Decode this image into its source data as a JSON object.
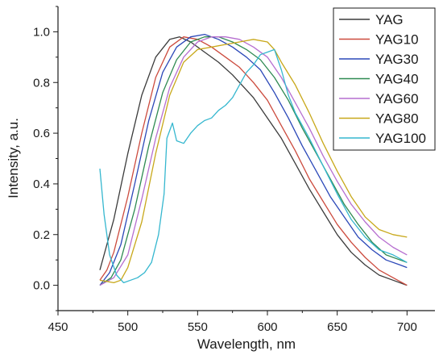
{
  "chart_data": {
    "type": "line",
    "title": "",
    "xlabel": "Wavelength, nm",
    "ylabel": "Intensity, a.u.",
    "xlim": [
      450,
      720
    ],
    "ylim": [
      -0.1,
      1.1
    ],
    "xticks": [
      "450",
      "500",
      "550",
      "600",
      "650",
      "700"
    ],
    "yticks": [
      "0.0",
      "0.2",
      "0.4",
      "0.6",
      "0.8",
      "1.0"
    ],
    "grid": false,
    "legend_position": "top-right",
    "series": [
      {
        "name": "YAG",
        "color": "#3b3b3b",
        "x": [
          480,
          490,
          500,
          510,
          520,
          530,
          537,
          545,
          555,
          565,
          575,
          590,
          600,
          610,
          620,
          630,
          640,
          650,
          660,
          670,
          680,
          690,
          700
        ],
        "y": [
          0.06,
          0.26,
          0.52,
          0.75,
          0.9,
          0.97,
          0.98,
          0.96,
          0.92,
          0.88,
          0.83,
          0.74,
          0.66,
          0.58,
          0.48,
          0.38,
          0.29,
          0.2,
          0.13,
          0.08,
          0.04,
          0.02,
          0.0
        ]
      },
      {
        "name": "YAG10",
        "color": "#cc4b3e",
        "x": [
          480,
          485,
          490,
          500,
          510,
          520,
          530,
          540,
          550,
          560,
          570,
          580,
          590,
          600,
          610,
          620,
          630,
          640,
          650,
          660,
          670,
          680,
          690,
          700
        ],
        "y": [
          0.02,
          0.06,
          0.13,
          0.35,
          0.6,
          0.82,
          0.94,
          0.98,
          0.97,
          0.94,
          0.9,
          0.86,
          0.8,
          0.73,
          0.63,
          0.53,
          0.42,
          0.33,
          0.24,
          0.17,
          0.11,
          0.06,
          0.03,
          0.0
        ]
      },
      {
        "name": "YAG30",
        "color": "#2b48b8",
        "x": [
          480,
          487,
          495,
          505,
          515,
          525,
          535,
          545,
          555,
          565,
          575,
          585,
          595,
          605,
          615,
          625,
          635,
          645,
          655,
          665,
          675,
          685,
          695,
          700
        ],
        "y": [
          0.0,
          0.05,
          0.16,
          0.4,
          0.65,
          0.84,
          0.94,
          0.98,
          0.99,
          0.97,
          0.94,
          0.9,
          0.85,
          0.76,
          0.66,
          0.55,
          0.45,
          0.35,
          0.27,
          0.19,
          0.14,
          0.1,
          0.08,
          0.07
        ]
      },
      {
        "name": "YAG40",
        "color": "#2f8a52",
        "x": [
          480,
          488,
          495,
          505,
          515,
          525,
          535,
          545,
          555,
          565,
          575,
          585,
          595,
          605,
          615,
          625,
          635,
          645,
          655,
          665,
          675,
          685,
          695,
          700
        ],
        "y": [
          0.0,
          0.03,
          0.1,
          0.3,
          0.55,
          0.76,
          0.89,
          0.96,
          0.98,
          0.98,
          0.96,
          0.93,
          0.89,
          0.82,
          0.73,
          0.62,
          0.52,
          0.42,
          0.32,
          0.24,
          0.17,
          0.12,
          0.1,
          0.09
        ]
      },
      {
        "name": "YAG60",
        "color": "#b66ed0",
        "x": [
          480,
          490,
          500,
          510,
          520,
          530,
          540,
          550,
          560,
          570,
          580,
          590,
          600,
          610,
          620,
          630,
          640,
          650,
          660,
          670,
          680,
          690,
          700
        ],
        "y": [
          0.0,
          0.03,
          0.12,
          0.34,
          0.58,
          0.78,
          0.9,
          0.96,
          0.98,
          0.98,
          0.97,
          0.94,
          0.9,
          0.82,
          0.72,
          0.62,
          0.51,
          0.41,
          0.32,
          0.25,
          0.19,
          0.15,
          0.12
        ]
      },
      {
        "name": "YAG80",
        "color": "#c8a81a",
        "x": [
          480,
          490,
          495,
          500,
          510,
          520,
          530,
          540,
          550,
          560,
          570,
          580,
          590,
          600,
          605,
          610,
          620,
          630,
          640,
          650,
          660,
          670,
          680,
          690,
          700
        ],
        "y": [
          0.02,
          0.01,
          0.02,
          0.07,
          0.25,
          0.52,
          0.75,
          0.88,
          0.93,
          0.94,
          0.95,
          0.96,
          0.97,
          0.96,
          0.93,
          0.88,
          0.79,
          0.68,
          0.56,
          0.45,
          0.35,
          0.27,
          0.22,
          0.2,
          0.19
        ]
      },
      {
        "name": "YAG100",
        "color": "#35b7cf",
        "x": [
          480,
          483,
          487,
          492,
          497,
          502,
          507,
          512,
          517,
          522,
          526,
          528,
          532,
          535,
          540,
          545,
          550,
          555,
          560,
          565,
          570,
          575,
          580,
          585,
          590,
          595,
          600,
          605,
          610,
          615,
          620,
          630,
          640,
          650,
          660,
          670,
          680,
          690,
          700
        ],
        "y": [
          0.46,
          0.28,
          0.12,
          0.04,
          0.01,
          0.02,
          0.03,
          0.05,
          0.09,
          0.2,
          0.36,
          0.58,
          0.64,
          0.57,
          0.56,
          0.6,
          0.63,
          0.65,
          0.66,
          0.69,
          0.71,
          0.74,
          0.79,
          0.84,
          0.87,
          0.91,
          0.92,
          0.93,
          0.85,
          0.75,
          0.68,
          0.58,
          0.47,
          0.36,
          0.26,
          0.19,
          0.14,
          0.12,
          0.09
        ]
      }
    ]
  }
}
